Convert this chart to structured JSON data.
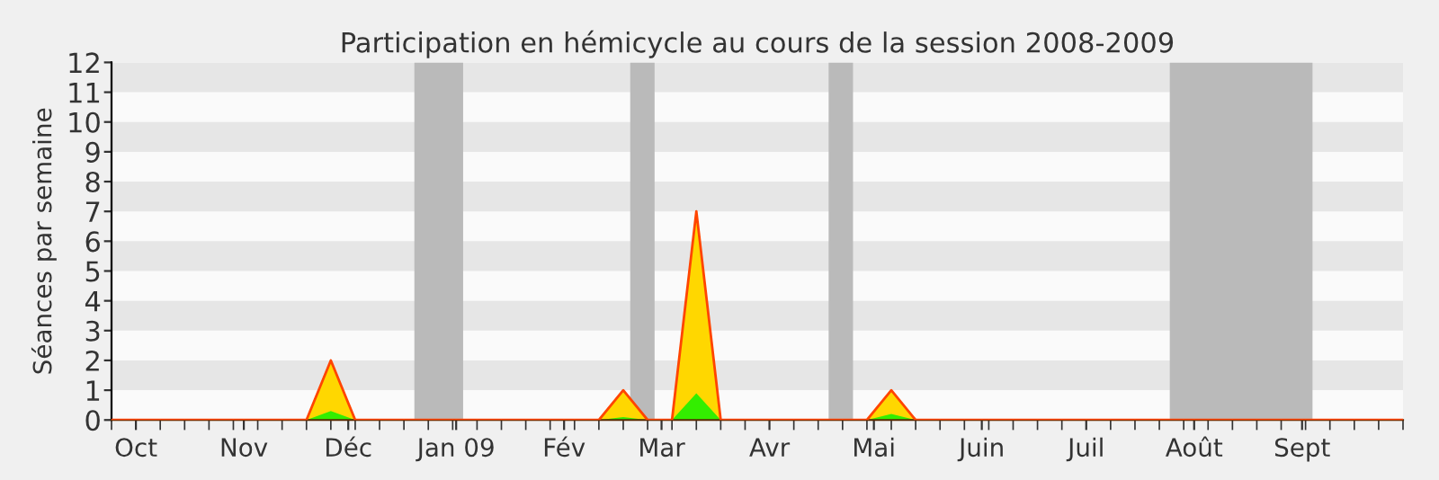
{
  "chart_data": {
    "type": "area",
    "title": "Participation en hémicycle au cours de la session 2008-2009",
    "ylabel": "Séances par semaine",
    "x": [
      "2008-09-24",
      "2008-10-01",
      "2008-10-08",
      "2008-10-15",
      "2008-10-22",
      "2008-10-29",
      "2008-11-05",
      "2008-11-12",
      "2008-11-19",
      "2008-11-26",
      "2008-12-03",
      "2008-12-10",
      "2008-12-17",
      "2008-12-24",
      "2008-12-31",
      "2009-01-07",
      "2009-01-14",
      "2009-01-21",
      "2009-01-28",
      "2009-02-04",
      "2009-02-11",
      "2009-02-18",
      "2009-02-25",
      "2009-03-04",
      "2009-03-11",
      "2009-03-18",
      "2009-03-25",
      "2009-04-01",
      "2009-04-08",
      "2009-04-15",
      "2009-04-22",
      "2009-04-29",
      "2009-05-06",
      "2009-05-13",
      "2009-05-20",
      "2009-05-27",
      "2009-06-03",
      "2009-06-10",
      "2009-06-17",
      "2009-06-24",
      "2009-07-01",
      "2009-07-08",
      "2009-07-15",
      "2009-07-22",
      "2009-07-29",
      "2009-08-05",
      "2009-08-12",
      "2009-08-19",
      "2009-08-26",
      "2009-09-02",
      "2009-09-09",
      "2009-09-16",
      "2009-09-23",
      "2009-09-30"
    ],
    "series": [
      {
        "color": "#ffd700",
        "values": [
          0,
          0,
          0,
          0,
          0,
          0,
          0,
          0,
          0,
          2,
          0,
          0,
          0,
          0,
          0,
          0,
          0,
          0,
          0,
          0,
          0,
          1,
          0,
          0,
          7,
          0,
          0,
          0,
          0,
          0,
          0,
          0,
          1,
          0,
          0,
          0,
          0,
          0,
          0,
          0,
          0,
          0,
          0,
          0,
          0,
          0,
          0,
          0,
          0,
          0,
          0,
          0,
          0,
          0
        ]
      },
      {
        "color": "#33ee00",
        "values": [
          0,
          0,
          0,
          0,
          0,
          0,
          0,
          0,
          0,
          0.3,
          0,
          0,
          0,
          0,
          0,
          0,
          0,
          0,
          0,
          0,
          0,
          0.1,
          0,
          0,
          0.9,
          0,
          0,
          0,
          0,
          0,
          0,
          0,
          0.2,
          0,
          0,
          0,
          0,
          0,
          0,
          0,
          0,
          0,
          0,
          0,
          0,
          0,
          0,
          0,
          0,
          0,
          0,
          0,
          0,
          0
        ]
      }
    ],
    "xlim": [
      "2008-09-24",
      "2009-09-30"
    ],
    "xticks": [
      {
        "value": "2008-10-01",
        "label": "Oct"
      },
      {
        "value": "2008-11-01",
        "label": "Nov"
      },
      {
        "value": "2008-12-01",
        "label": "Déc"
      },
      {
        "value": "2009-01-01",
        "label": "Jan 09"
      },
      {
        "value": "2009-02-01",
        "label": "Fév"
      },
      {
        "value": "2009-03-01",
        "label": "Mar"
      },
      {
        "value": "2009-04-01",
        "label": "Avr"
      },
      {
        "value": "2009-05-01",
        "label": "Mai"
      },
      {
        "value": "2009-06-01",
        "label": "Juin"
      },
      {
        "value": "2009-07-01",
        "label": "Juil"
      },
      {
        "value": "2009-08-01",
        "label": "Août"
      },
      {
        "value": "2009-09-01",
        "label": "Sept"
      }
    ],
    "ylim": [
      0,
      12
    ],
    "yticks": [
      0,
      1,
      2,
      3,
      4,
      5,
      6,
      7,
      8,
      9,
      10,
      11,
      12
    ],
    "bands": [
      {
        "axis": "x",
        "from": "2008-12-20",
        "to": "2009-01-03",
        "color": "#bababa"
      },
      {
        "axis": "x",
        "from": "2009-02-20",
        "to": "2009-02-27",
        "color": "#bababa"
      },
      {
        "axis": "x",
        "from": "2009-04-18",
        "to": "2009-04-25",
        "color": "#bababa"
      },
      {
        "axis": "x",
        "from": "2009-07-25",
        "to": "2009-09-04",
        "color": "#bababa"
      }
    ]
  }
}
